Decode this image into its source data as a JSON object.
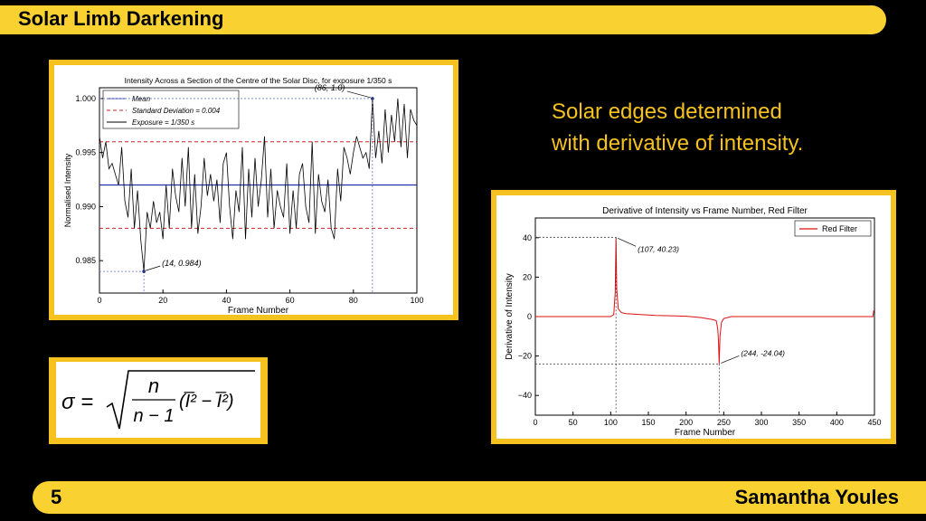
{
  "slide": {
    "title": "Solar Limb Darkening",
    "number": "5",
    "author": "Samantha Youles",
    "caption_line1": "Solar edges determined",
    "caption_line2": "with derivative of intensity."
  },
  "formula": {
    "lhs": "σ =",
    "numerator": "n",
    "denominator": "n − 1",
    "bracket": "(I̅² − I̅²)"
  },
  "colors": {
    "accent": "#f6c21f",
    "background": "#000000",
    "mean_line": "#2233aa",
    "sd_line": "#cc2222",
    "red_filter": "#dd1111"
  },
  "chart_data": [
    {
      "type": "line",
      "title": "Intensity Across a Section of the Centre of the Solar Disc, for exposure 1/350 s",
      "xlabel": "Frame Number",
      "ylabel": "Normalised Intensity",
      "xlim": [
        0,
        100
      ],
      "ylim": [
        0.982,
        1.001
      ],
      "xticks": [
        0,
        20,
        40,
        60,
        80,
        100
      ],
      "yticks": [
        0.985,
        0.99,
        0.995,
        1.0
      ],
      "ytick_labels": [
        "0.985",
        "0.990",
        "0.995",
        "1.000"
      ],
      "legend_placement": "top-left",
      "legend": [
        "Mean",
        "Standard Deviation = 0.004",
        "Exposure = 1/350 s"
      ],
      "mean": 0.992,
      "sd_upper": 0.996,
      "sd_lower": 0.988,
      "annotations": [
        {
          "label": "(86, 1.0)",
          "x": 86,
          "y": 1.0
        },
        {
          "label": "(14, 0.984)",
          "x": 14,
          "y": 0.984
        }
      ],
      "series": [
        {
          "name": "Exposure = 1/350 s",
          "values": [
            0.9965,
            0.9945,
            0.996,
            0.9935,
            0.994,
            0.993,
            0.992,
            0.9955,
            0.9905,
            0.989,
            0.9935,
            0.988,
            0.9915,
            0.987,
            0.984,
            0.9895,
            0.988,
            0.9905,
            0.9885,
            0.9895,
            0.987,
            0.992,
            0.988,
            0.9935,
            0.991,
            0.9895,
            0.9945,
            0.99,
            0.9955,
            0.988,
            0.993,
            0.9875,
            0.99,
            0.9945,
            0.991,
            0.993,
            0.9905,
            0.9925,
            0.9885,
            0.994,
            0.995,
            0.99,
            0.987,
            0.9915,
            0.9895,
            0.9955,
            0.987,
            0.9935,
            0.989,
            0.9945,
            0.99,
            0.9925,
            0.9965,
            0.989,
            0.9935,
            0.988,
            0.9915,
            0.99,
            0.989,
            0.994,
            0.9875,
            0.9915,
            0.988,
            0.993,
            0.994,
            0.99,
            0.9885,
            0.996,
            0.9875,
            0.993,
            0.9905,
            0.9895,
            0.9925,
            0.988,
            0.987,
            0.9935,
            0.9905,
            0.9955,
            0.9945,
            0.993,
            0.995,
            0.9965,
            0.9955,
            0.9945,
            0.995,
            0.9935,
            1.0,
            0.9945,
            0.997,
            0.994,
            0.999,
            0.995,
            0.9985,
            0.996,
            1.0,
            0.9955,
            0.9995,
            0.9945,
            0.999,
            0.998,
            0.9975
          ]
        }
      ]
    },
    {
      "type": "line",
      "title": "Derivative of Intensity vs Frame Number, Red Filter",
      "xlabel": "Frame Number",
      "ylabel": "Derivative of Intensity",
      "xlim": [
        0,
        450
      ],
      "ylim": [
        -50,
        50
      ],
      "xticks": [
        0,
        50,
        100,
        150,
        200,
        250,
        300,
        350,
        400,
        450
      ],
      "yticks": [
        -40,
        -20,
        0,
        20,
        40
      ],
      "ytick_labels": [
        "−40",
        "−20",
        "0",
        "20",
        "40"
      ],
      "legend_placement": "top-right",
      "legend": [
        "Red Filter"
      ],
      "annotations": [
        {
          "label": "(107, 40.23)",
          "x": 107,
          "y": 40.23
        },
        {
          "label": "(244, -24.04)",
          "x": 244,
          "y": -24.04
        }
      ],
      "series": [
        {
          "name": "Red Filter",
          "x": [
            0,
            100,
            104,
            106,
            107,
            108,
            110,
            114,
            120,
            140,
            160,
            180,
            200,
            220,
            235,
            240,
            242,
            243,
            244,
            245,
            247,
            250,
            255,
            260,
            300,
            350,
            400,
            448,
            449,
            450
          ],
          "y": [
            0,
            0,
            1,
            12,
            40.23,
            14,
            4,
            2,
            1.5,
            1,
            0.6,
            0.4,
            0.2,
            -0.5,
            -1.5,
            -2,
            -6,
            -12,
            -24.04,
            -10,
            -3,
            -1,
            -0.5,
            0,
            0,
            0,
            0,
            0,
            3,
            3
          ]
        }
      ]
    }
  ]
}
